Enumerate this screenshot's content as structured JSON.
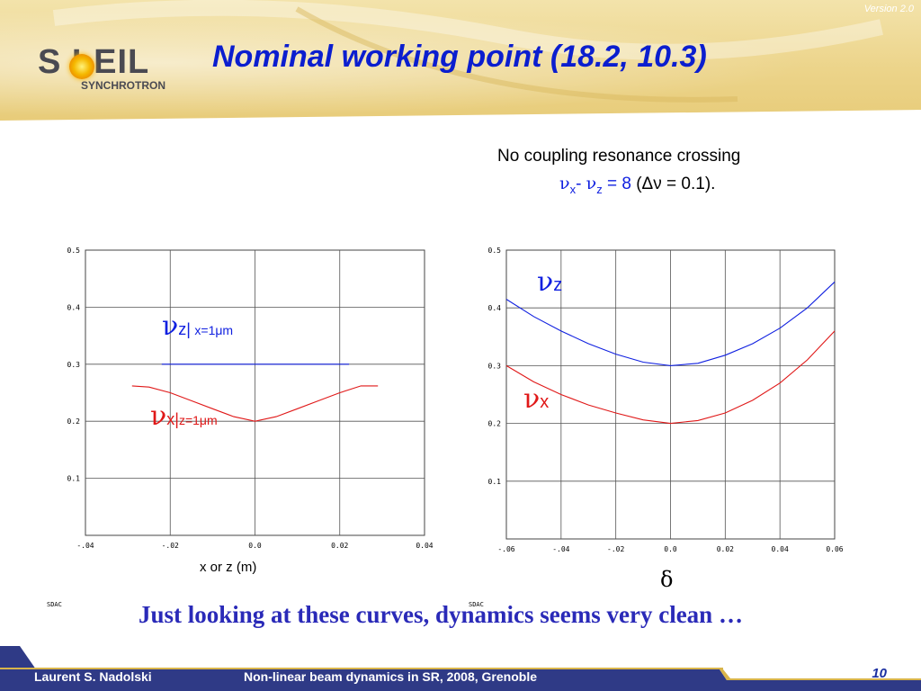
{
  "header": {
    "version": "Version 2.0",
    "logo_main": "S LEIL",
    "logo_sub": "SYNCHROTRON",
    "title": "Nominal working point (18.2, 10.3)"
  },
  "note": {
    "line1": "No coupling resonance crossing",
    "nu": "ν",
    "sub_x": "x",
    "minus": "- ",
    "sub_z": "z",
    "eq": " = 8 ",
    "paren": "(Δν = 0.1)."
  },
  "left_chart_labels": {
    "nu_z": "ν",
    "nu_z_sub": "z|",
    "nu_z_cond": "x=1μm",
    "nu_x": "ν",
    "nu_x_sub": "x|",
    "nu_x_cond": "z=1μm",
    "xlabel": "x or z (m)",
    "sdac": "SDAC"
  },
  "right_chart_labels": {
    "nu_z": "ν",
    "nu_z_sub": "z",
    "nu_x": "ν",
    "nu_x_sub": "x",
    "xlabel": "δ",
    "sdac": "SDAC"
  },
  "conclusion": "Just looking at these curves, dynamics seems very clean …",
  "footer": {
    "author": "Laurent S. Nadolski",
    "talk": "Non-linear beam dynamics in SR,  2008, Grenoble",
    "page": "10"
  },
  "colors": {
    "title": "#0b1ecf",
    "blue_series": "#1020e0",
    "red_series": "#e01818",
    "footer_bg": "#2f3a86"
  },
  "chart_data": [
    {
      "type": "line",
      "xlabel": "x or z (m)",
      "xlim": [
        -0.04,
        0.04
      ],
      "ylim": [
        0,
        0.5
      ],
      "xticks": [
        "-.04",
        "-.02",
        "0.0",
        "0.02",
        "0.04"
      ],
      "yticks": [
        "0.1",
        "0.2",
        "0.3",
        "0.4",
        "0.5"
      ],
      "grid": true,
      "series": [
        {
          "name": "νz| x=1μm",
          "color": "blue",
          "x": [
            -0.022,
            -0.015,
            -0.01,
            -0.005,
            0.0,
            0.005,
            0.01,
            0.015,
            0.0222
          ],
          "y": [
            0.3,
            0.3,
            0.3,
            0.3,
            0.3,
            0.3,
            0.3,
            0.3,
            0.3
          ]
        },
        {
          "name": "νx|z=1μm",
          "color": "red",
          "x": [
            -0.029,
            -0.025,
            -0.02,
            -0.015,
            -0.01,
            -0.005,
            0.0,
            0.005,
            0.01,
            0.015,
            0.02,
            0.025,
            0.029
          ],
          "y": [
            0.262,
            0.26,
            0.25,
            0.236,
            0.222,
            0.208,
            0.2,
            0.208,
            0.222,
            0.236,
            0.25,
            0.262,
            0.262
          ]
        }
      ]
    },
    {
      "type": "line",
      "xlabel": "δ",
      "xlim": [
        -0.06,
        0.06
      ],
      "ylim": [
        0,
        0.5
      ],
      "xticks": [
        "-.06",
        "-.04",
        "-.02",
        "0.0",
        "0.02",
        "0.04",
        "0.06"
      ],
      "yticks": [
        "0.1",
        "0.2",
        "0.3",
        "0.4",
        "0.5"
      ],
      "grid": true,
      "series": [
        {
          "name": "νz",
          "color": "blue",
          "x": [
            -0.06,
            -0.05,
            -0.04,
            -0.03,
            -0.02,
            -0.01,
            0.0,
            0.01,
            0.02,
            0.03,
            0.04,
            0.05,
            0.06
          ],
          "y": [
            0.415,
            0.385,
            0.36,
            0.338,
            0.32,
            0.306,
            0.3,
            0.304,
            0.318,
            0.338,
            0.365,
            0.4,
            0.445
          ]
        },
        {
          "name": "νx",
          "color": "red",
          "x": [
            -0.06,
            -0.05,
            -0.04,
            -0.03,
            -0.02,
            -0.01,
            0.0,
            0.01,
            0.02,
            0.03,
            0.04,
            0.05,
            0.06
          ],
          "y": [
            0.3,
            0.272,
            0.25,
            0.232,
            0.218,
            0.206,
            0.2,
            0.205,
            0.218,
            0.24,
            0.27,
            0.31,
            0.36
          ]
        }
      ]
    }
  ]
}
